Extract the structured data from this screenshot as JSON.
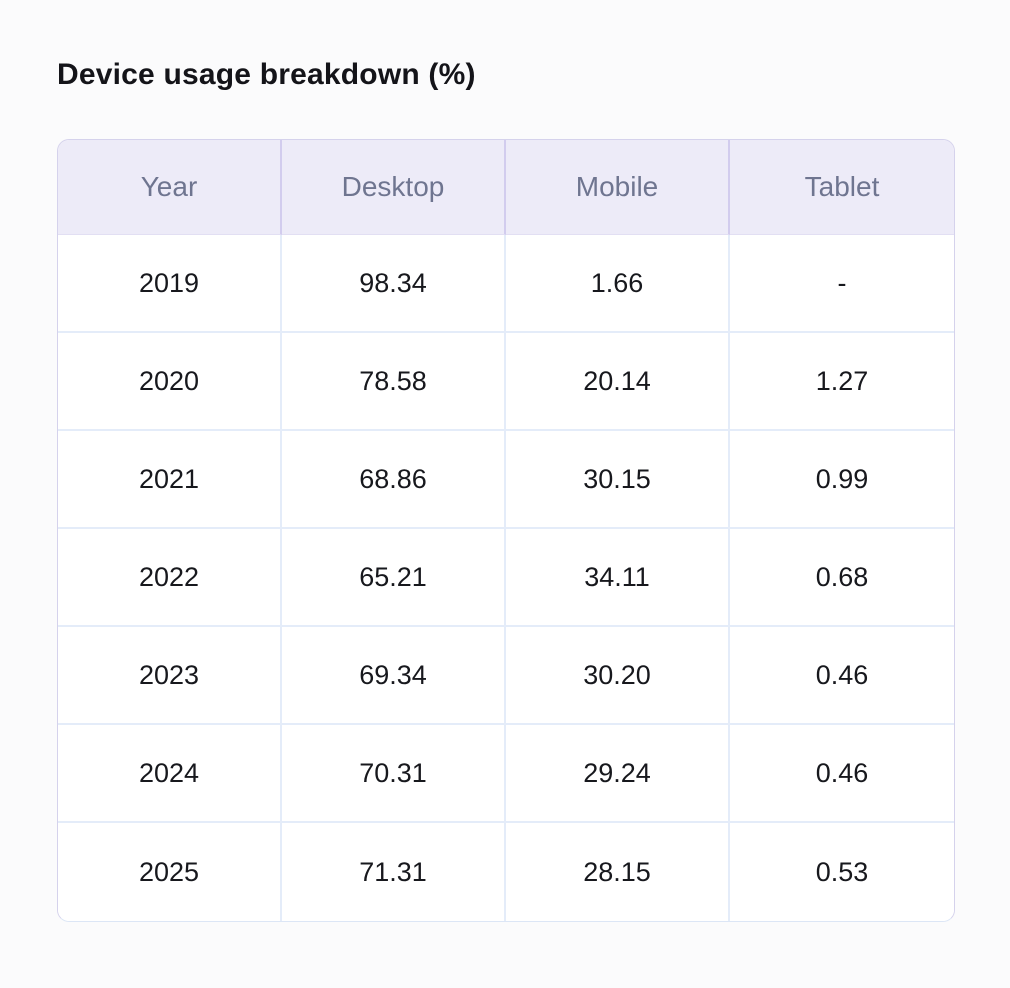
{
  "page": {
    "title": "Device usage breakdown (%)"
  },
  "chart_data": {
    "type": "table",
    "title": "Device usage breakdown (%)",
    "columns": [
      "Year",
      "Desktop",
      "Mobile",
      "Tablet"
    ],
    "rows": [
      [
        "2019",
        "98.34",
        "1.66",
        "-"
      ],
      [
        "2020",
        "78.58",
        "20.14",
        "1.27"
      ],
      [
        "2021",
        "68.86",
        "30.15",
        "0.99"
      ],
      [
        "2022",
        "65.21",
        "34.11",
        "0.68"
      ],
      [
        "2023",
        "69.34",
        "30.20",
        "0.46"
      ],
      [
        "2024",
        "70.31",
        "29.24",
        "0.46"
      ],
      [
        "2025",
        "71.31",
        "28.15",
        "0.53"
      ]
    ],
    "missing_value_marker": "-",
    "layout": {
      "header_background": "#EDEBF8",
      "header_text_color": "#6F7590",
      "header_divider_color": "#D2CCEE",
      "body_grid_color": "#E4ECF9",
      "body_text_color": "#17181D",
      "corner_radius_px": 12
    }
  }
}
